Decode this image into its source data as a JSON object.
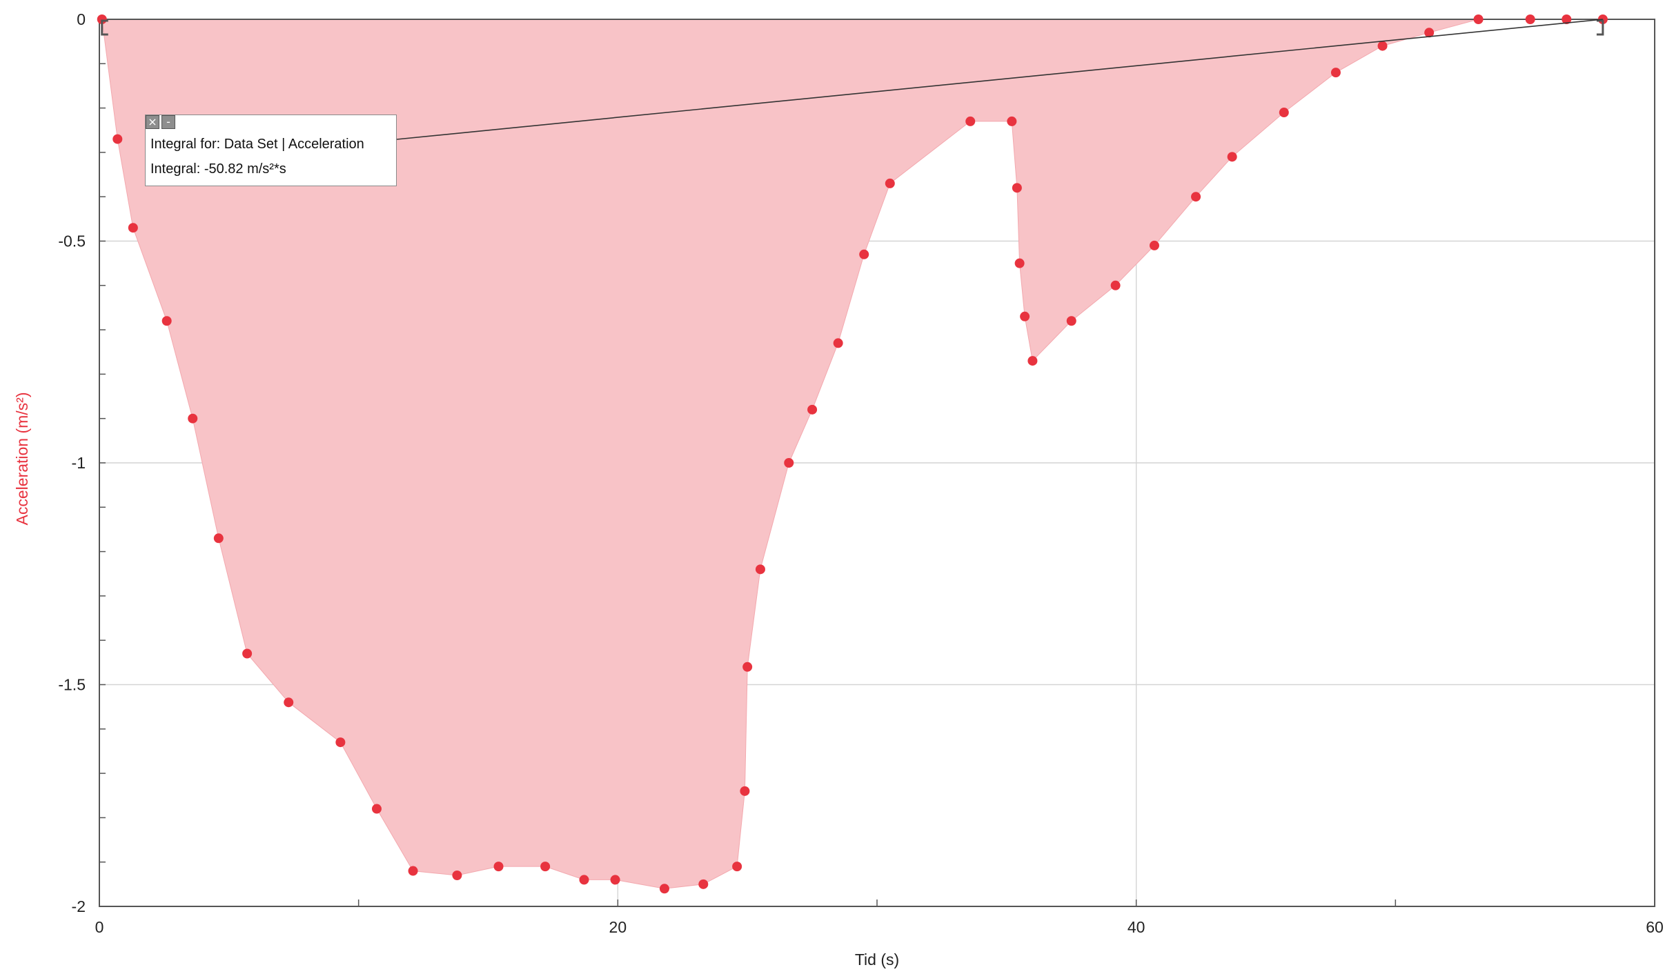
{
  "chart_data": {
    "type": "scatter",
    "title": "",
    "xlabel": "Tid (s)",
    "ylabel": "Acceleration (m/s²)",
    "xlim": [
      0,
      60
    ],
    "ylim": [
      -2,
      0
    ],
    "x_ticks": [
      "0",
      "20",
      "40",
      "60"
    ],
    "y_ticks": [
      "0",
      "-0.5",
      "-1",
      "-1.5",
      "-2"
    ],
    "grid": true,
    "series": [
      {
        "name": "Acceleration",
        "color": "#e8333f",
        "fill_color": "#f8c3c7",
        "x": [
          0.1,
          0.7,
          1.3,
          2.6,
          3.6,
          4.6,
          5.7,
          7.3,
          9.3,
          10.7,
          12.1,
          13.8,
          15.4,
          17.2,
          18.7,
          19.9,
          21.8,
          23.3,
          24.6,
          24.9,
          25.0,
          25.5,
          26.6,
          27.5,
          28.5,
          29.5,
          30.5,
          33.6,
          35.2,
          35.4,
          35.5,
          35.7,
          36.0,
          37.5,
          39.2,
          40.7,
          42.3,
          43.7,
          45.7,
          47.7,
          49.5,
          51.3,
          53.2,
          55.2,
          56.6,
          58.0
        ],
        "y": [
          0.0,
          -0.27,
          -0.47,
          -0.68,
          -0.9,
          -1.17,
          -1.43,
          -1.54,
          -1.63,
          -1.78,
          -1.92,
          -1.93,
          -1.91,
          -1.91,
          -1.94,
          -1.94,
          -1.96,
          -1.95,
          -1.91,
          -1.74,
          -1.46,
          -1.24,
          -1.0,
          -0.88,
          -0.73,
          -0.53,
          -0.37,
          -0.23,
          -0.23,
          -0.38,
          -0.55,
          -0.67,
          -0.77,
          -0.68,
          -0.6,
          -0.51,
          -0.4,
          -0.31,
          -0.21,
          -0.12,
          -0.06,
          -0.03,
          0.0,
          0.0,
          0.0,
          0.0
        ]
      }
    ],
    "integral": {
      "x_range": [
        0.1,
        58.0
      ],
      "label": "Integral for: Data Set | Acceleration",
      "value": "Integral: -50.82 m/s²*s"
    }
  }
}
